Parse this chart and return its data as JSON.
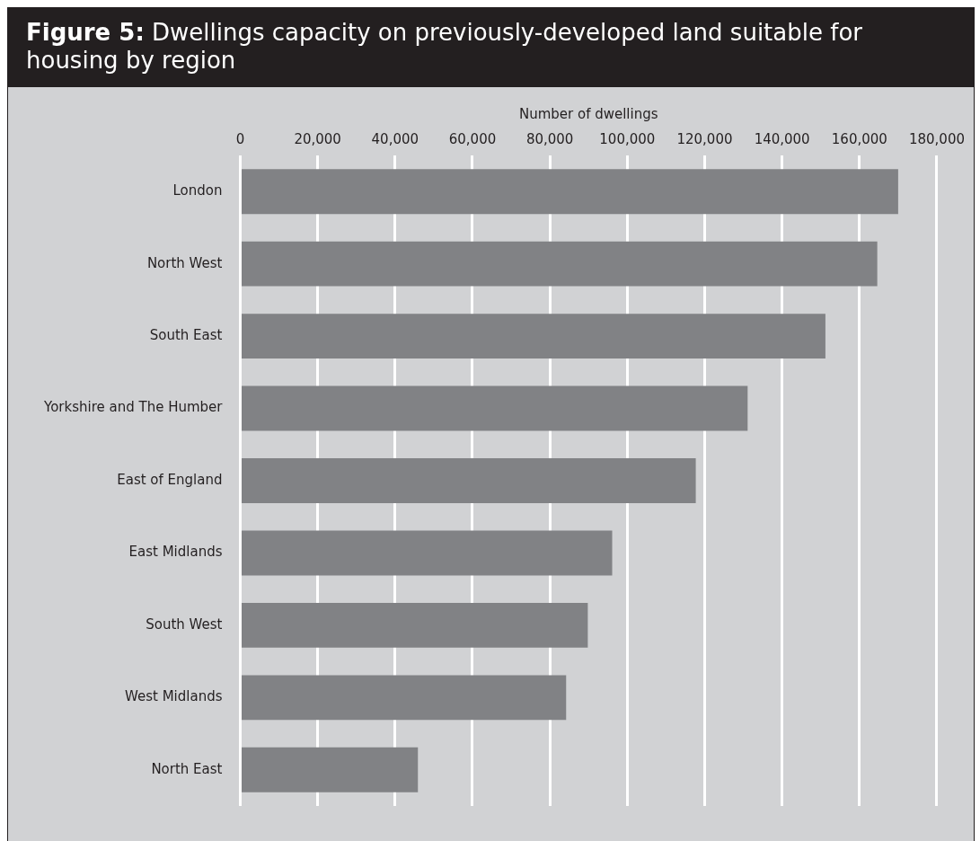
{
  "chart_data": {
    "type": "bar",
    "orientation": "horizontal",
    "title": "Figure 5: Dwellings capacity on previously-developed land suitable for housing by region",
    "xlabel": "Number of dwellings",
    "categories": [
      "London",
      "North West",
      "South East",
      "Yorkshire and The Humber",
      "East of England",
      "East Midlands",
      "South West",
      "West Midlands",
      "North East"
    ],
    "values": [
      170000,
      164600,
      151200,
      131100,
      117700,
      96100,
      89800,
      84200,
      45900
    ],
    "color": "#818285",
    "xlim": [
      0,
      180000
    ],
    "xticks": [
      0,
      {
        "value": 20000,
        "label": "20,000"
      },
      {
        "value": 40000,
        "label": "40,000"
      },
      {
        "value": 60000,
        "label": "60,000"
      },
      {
        "value": 80000,
        "label": "80,000"
      },
      {
        "value": 100000,
        "label": "100,000"
      },
      {
        "value": 120000,
        "label": "120,000"
      },
      {
        "value": 140000,
        "label": "140,000"
      },
      {
        "value": 160000,
        "label": "160,000"
      },
      {
        "value": 180000,
        "label": "180,000"
      }
    ],
    "grid": "x",
    "legend": false
  }
}
